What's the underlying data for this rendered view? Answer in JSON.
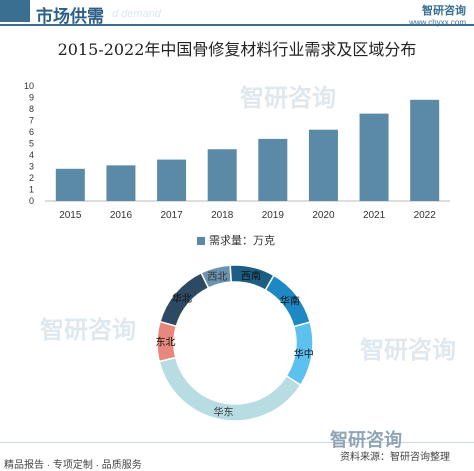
{
  "header": {
    "section_title": "市场供需",
    "ghost_text": "d demand",
    "brand_name": "智研咨询",
    "brand_url": "www.chyxx.com"
  },
  "title": "2015-2022年中国骨修复材料行业需求及区域分布",
  "chart_data": [
    {
      "type": "bar",
      "categories": [
        "2015",
        "2016",
        "2017",
        "2018",
        "2019",
        "2020",
        "2021",
        "2022"
      ],
      "series": [
        {
          "name": "需求量：万克",
          "values": [
            2.8,
            3.1,
            3.6,
            4.5,
            5.4,
            6.2,
            7.6,
            8.8
          ]
        }
      ],
      "ylim": [
        0,
        10
      ],
      "yticks": [
        "0",
        "1",
        "2",
        "3",
        "4",
        "5",
        "6",
        "7",
        "8",
        "9",
        "10"
      ],
      "color": "#5b8aa6",
      "legend": "bottom-center"
    },
    {
      "type": "pie",
      "donut": true,
      "labels": [
        "西北",
        "西南",
        "华南",
        "华中",
        "华东",
        "东北",
        "华北"
      ],
      "values": [
        6,
        9,
        12,
        13,
        36,
        8,
        13
      ],
      "colors": [
        "#6a93b0",
        "#1d5e85",
        "#1d88c4",
        "#5cc1ef",
        "#b7dde3",
        "#e8877b",
        "#2d4a63"
      ]
    }
  ],
  "watermark": "智研咨询",
  "footer": {
    "left": "精品报告 · 专项定制 · 品质服务",
    "right_logo": "智研咨询",
    "right": "资料来源：智研咨询整理"
  }
}
